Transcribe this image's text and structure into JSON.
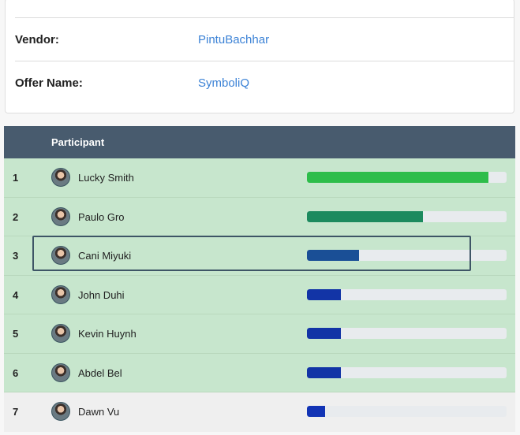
{
  "details": {
    "vendor_label": "Vendor:",
    "vendor_value": "PintuBachhar",
    "offer_label": "Offer Name:",
    "offer_value": "SymboliQ"
  },
  "leaderboard": {
    "column_header": "Participant",
    "rows": [
      {
        "rank": "1",
        "name": "Lucky Smith",
        "progress_percent": 91,
        "bar_color": "#2dbd4a"
      },
      {
        "rank": "2",
        "name": "Paulo Gro",
        "progress_percent": 58,
        "bar_color": "#1c8a5e"
      },
      {
        "rank": "3",
        "name": "Cani Miyuki",
        "progress_percent": 26,
        "bar_color": "#1a4f96"
      },
      {
        "rank": "4",
        "name": "John Duhi",
        "progress_percent": 17,
        "bar_color": "#1234a6"
      },
      {
        "rank": "5",
        "name": "Kevin Huynh",
        "progress_percent": 17,
        "bar_color": "#1234a6"
      },
      {
        "rank": "6",
        "name": "Abdel Bel",
        "progress_percent": 17,
        "bar_color": "#1234a6"
      },
      {
        "rank": "7",
        "name": "Dawn Vu",
        "progress_percent": 9,
        "bar_color": "#1234b5"
      }
    ]
  }
}
